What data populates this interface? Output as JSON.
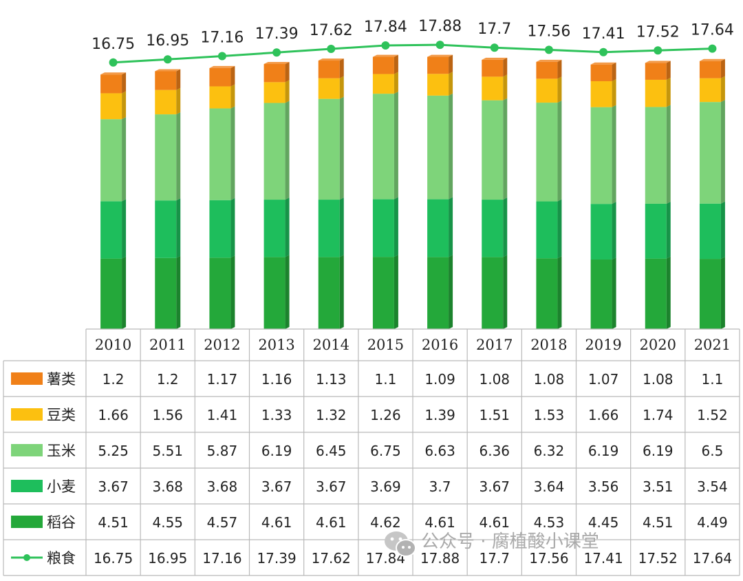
{
  "chart_data": {
    "type": "bar",
    "categories": [
      "2010",
      "2011",
      "2012",
      "2013",
      "2014",
      "2015",
      "2016",
      "2017",
      "2018",
      "2019",
      "2020",
      "2021"
    ],
    "series": [
      {
        "name": "薯类",
        "kind": "bar",
        "color": "#f08018",
        "values": [
          1.2,
          1.2,
          1.17,
          1.16,
          1.13,
          1.1,
          1.09,
          1.08,
          1.08,
          1.07,
          1.08,
          1.1
        ]
      },
      {
        "name": "豆类",
        "kind": "bar",
        "color": "#fcc010",
        "values": [
          1.66,
          1.56,
          1.41,
          1.33,
          1.32,
          1.26,
          1.39,
          1.51,
          1.53,
          1.66,
          1.74,
          1.52
        ]
      },
      {
        "name": "玉米",
        "kind": "bar",
        "color": "#7ed47a",
        "values": [
          5.25,
          5.51,
          5.87,
          6.19,
          6.45,
          6.75,
          6.63,
          6.36,
          6.32,
          6.19,
          6.19,
          6.5
        ]
      },
      {
        "name": "小麦",
        "kind": "bar",
        "color": "#1ebe5c",
        "values": [
          3.67,
          3.68,
          3.68,
          3.67,
          3.67,
          3.69,
          3.7,
          3.67,
          3.64,
          3.56,
          3.51,
          3.54
        ]
      },
      {
        "name": "稻谷",
        "kind": "bar",
        "color": "#24a83a",
        "values": [
          4.51,
          4.55,
          4.57,
          4.61,
          4.61,
          4.62,
          4.61,
          4.61,
          4.53,
          4.45,
          4.51,
          4.49
        ]
      },
      {
        "name": "粮食",
        "kind": "line",
        "color": "#2ec25a",
        "values": [
          16.75,
          16.95,
          17.16,
          17.39,
          17.62,
          17.84,
          17.88,
          17.7,
          17.56,
          17.41,
          17.52,
          17.64
        ]
      }
    ],
    "table_rows": [
      {
        "label": "薯类",
        "cells": [
          "1.2",
          "1.2",
          "1.17",
          "1.16",
          "1.13",
          "1.1",
          "1.09",
          "1.08",
          "1.08",
          "1.07",
          "1.08",
          "1.1"
        ]
      },
      {
        "label": "豆类",
        "cells": [
          "1.66",
          "1.56",
          "1.41",
          "1.33",
          "1.32",
          "1.26",
          "1.39",
          "1.51",
          "1.53",
          "1.66",
          "1.74",
          "1.52"
        ]
      },
      {
        "label": "玉米",
        "cells": [
          "5.25",
          "5.51",
          "5.87",
          "6.19",
          "6.45",
          "6.75",
          "6.63",
          "6.36",
          "6.32",
          "6.19",
          "6.19",
          "6.5"
        ]
      },
      {
        "label": "小麦",
        "cells": [
          "3.67",
          "3.68",
          "3.68",
          "3.67",
          "3.67",
          "3.69",
          "3.7",
          "3.67",
          "3.64",
          "3.56",
          "3.51",
          "3.54"
        ]
      },
      {
        "label": "稻谷",
        "cells": [
          "4.51",
          "4.55",
          "4.57",
          "4.61",
          "4.61",
          "4.62",
          "4.61",
          "4.61",
          "4.53",
          "4.45",
          "4.51",
          "4.49"
        ]
      },
      {
        "label": "粮食",
        "cells": [
          "16.75",
          "16.95",
          "17.16",
          "17.39",
          "17.62",
          "17.84",
          "17.88",
          "17.7",
          "17.56",
          "17.41",
          "17.52",
          "17.64"
        ]
      }
    ],
    "line_labels": [
      "16.75",
      "16.95",
      "17.16",
      "17.39",
      "17.62",
      "17.84",
      "17.88",
      "17.7",
      "17.56",
      "17.41",
      "17.52",
      "17.64"
    ],
    "legend_placement": "left (data table legend keys)",
    "grid": false
  },
  "watermark": {
    "icon": "wechat-icon",
    "text": "公众号 · 腐植酸小课堂"
  }
}
